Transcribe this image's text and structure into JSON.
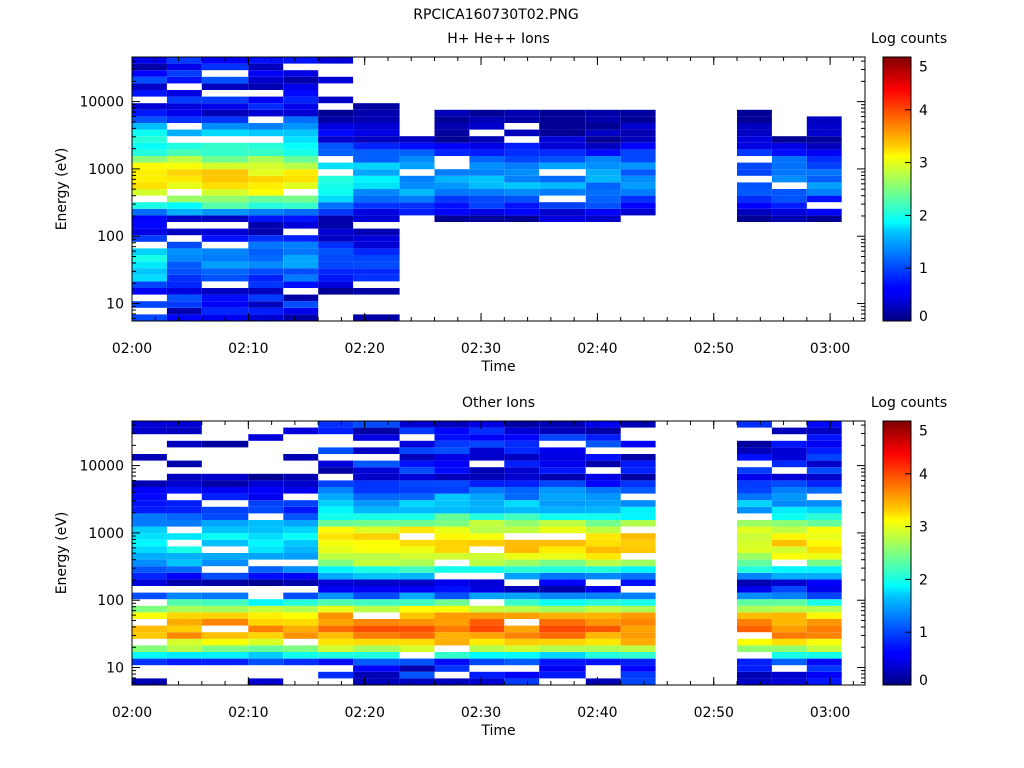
{
  "page_title": "RPCICA160730T02.PNG",
  "chart_data": [
    {
      "type": "heatmap",
      "title": "H+ He++ Ions",
      "xlabel": "Time",
      "ylabel": "Energy (eV)",
      "y_scale": "log",
      "ylim": [
        5.5,
        46000
      ],
      "x_range": [
        "02:00",
        "03:03"
      ],
      "x_ticks": [
        "02:00",
        "02:10",
        "02:20",
        "02:30",
        "02:40",
        "02:50",
        "03:00"
      ],
      "y_ticks": [
        "10",
        "100",
        "1000",
        "10000"
      ],
      "colorbar": {
        "label": "Log counts",
        "min": 0,
        "max": 5,
        "ticks": [
          "0",
          "1",
          "2",
          "3",
          "4",
          "5"
        ]
      },
      "time_bins": [
        "02:00",
        "02:03",
        "02:06",
        "02:10",
        "02:13",
        "02:16",
        "02:19",
        "02:23",
        "02:26",
        "02:29",
        "02:32",
        "02:35",
        "02:39",
        "02:42",
        "02:45",
        "02:48",
        "02:52",
        "02:55",
        "02:58",
        "03:01"
      ],
      "summary_profile": {
        "note_levels": "log counts by band (low energy → high energy)",
        "bands": [
          {
            "energy": [
              500,
              1000
            ],
            "levels_per_bin": [
              3.3,
              3.3,
              3.3,
              3.3,
              3.3,
              2.0,
              1.6,
              1.5,
              1.4,
              1.5,
              1.4,
              1.4,
              1.3,
              1.3,
              null,
              null,
              1.2,
              1.2,
              1.2,
              null
            ]
          },
          {
            "energy": [
              1000,
              2500
            ],
            "levels_per_bin": [
              2.2,
              2.2,
              2.2,
              2.2,
              2.2,
              0.6,
              0.5,
              null,
              0.3,
              0.3,
              0.3,
              0.3,
              0.3,
              0.5,
              null,
              null,
              0.3,
              null,
              0.2,
              null
            ]
          },
          {
            "energy": [
              35,
              50
            ],
            "levels_per_bin": [
              1.9,
              1.3,
              1.3,
              1.3,
              1.3,
              1.0,
              0.8,
              null,
              null,
              null,
              null,
              null,
              null,
              null,
              null,
              null,
              null,
              null,
              null,
              null
            ]
          }
        ]
      }
    },
    {
      "type": "heatmap",
      "title": "Other Ions",
      "xlabel": "Time",
      "ylabel": "Energy (eV)",
      "y_scale": "log",
      "ylim": [
        5.5,
        46000
      ],
      "x_range": [
        "02:00",
        "03:03"
      ],
      "x_ticks": [
        "02:00",
        "02:10",
        "02:20",
        "02:30",
        "02:40",
        "02:50",
        "03:00"
      ],
      "y_ticks": [
        "10",
        "100",
        "1000",
        "10000"
      ],
      "colorbar": {
        "label": "Log counts",
        "min": 0,
        "max": 5,
        "ticks": [
          "0",
          "1",
          "2",
          "3",
          "4",
          "5"
        ]
      },
      "time_bins": [
        "02:00",
        "02:03",
        "02:06",
        "02:10",
        "02:13",
        "02:16",
        "02:19",
        "02:23",
        "02:26",
        "02:29",
        "02:32",
        "02:35",
        "02:39",
        "02:42",
        "02:45",
        "02:48",
        "02:52",
        "02:55",
        "02:58",
        "03:01"
      ],
      "summary_profile": {
        "note_levels": "log counts by band (low energy → high energy)",
        "bands": [
          {
            "energy": [
              30,
              50
            ],
            "levels_per_bin": [
              3.6,
              3.6,
              3.6,
              3.6,
              3.6,
              3.8,
              3.8,
              3.8,
              3.8,
              3.8,
              3.8,
              3.8,
              3.8,
              3.8,
              null,
              null,
              3.7,
              3.7,
              3.7,
              null
            ]
          },
          {
            "energy": [
              500,
              1000
            ],
            "levels_per_bin": [
              1.8,
              1.8,
              1.8,
              1.8,
              1.8,
              3.2,
              3.3,
              3.3,
              3.4,
              3.3,
              3.3,
              3.3,
              3.3,
              3.3,
              null,
              null,
              3.1,
              3.2,
              3.2,
              null
            ]
          },
          {
            "energy": [
              1000,
              2500
            ],
            "levels_per_bin": [
              1.0,
              1.0,
              1.0,
              1.0,
              1.0,
              1.8,
              1.7,
              1.7,
              1.8,
              1.7,
              1.7,
              1.8,
              1.7,
              1.7,
              null,
              null,
              1.6,
              1.7,
              1.7,
              null
            ]
          }
        ]
      }
    }
  ]
}
